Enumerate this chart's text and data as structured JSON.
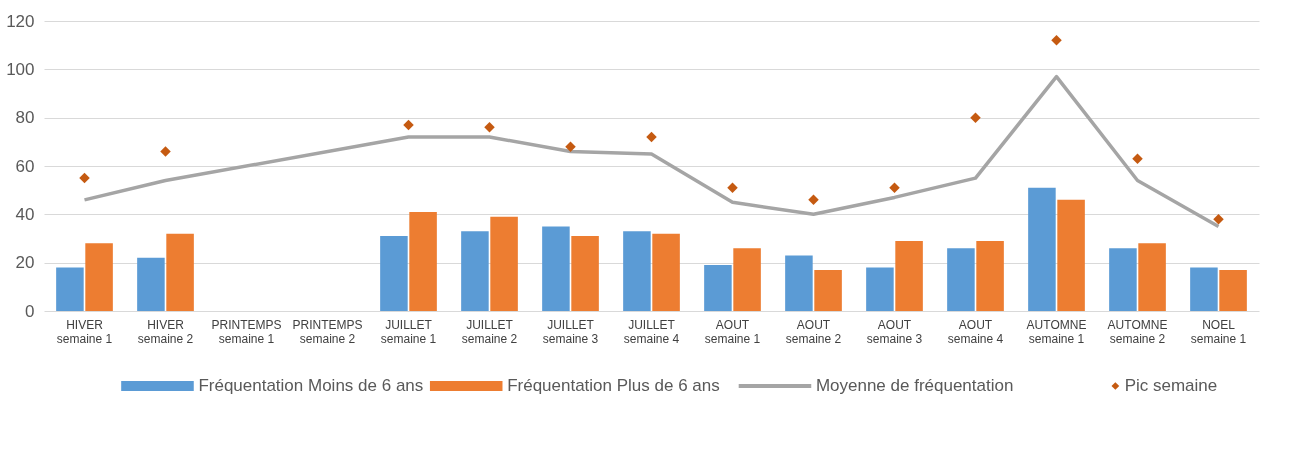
{
  "chart_data": {
    "type": "bar",
    "categories": [
      "HIVER semaine 1",
      "HIVER semaine 2",
      "PRINTEMPS semaine 1",
      "PRINTEMPS semaine 2",
      "JUILLET semaine 1",
      "JUILLET semaine 2",
      "JUILLET semaine 3",
      "JUILLET semaine 4",
      "AOUT semaine 1",
      "AOUT semaine 2",
      "AOUT semaine 3",
      "AOUT semaine 4",
      "AUTOMNE semaine 1",
      "AUTOMNE semaine 2",
      "NOEL semaine 1"
    ],
    "series": [
      {
        "name": "Fréquentation Moins de 6 ans",
        "color": "#5b9bd5",
        "values": [
          18,
          22,
          null,
          null,
          31,
          33,
          35,
          33,
          19,
          23,
          18,
          26,
          51,
          26,
          18
        ]
      },
      {
        "name": "Fréquentation Plus de 6 ans",
        "color": "#ed7d31",
        "values": [
          28,
          32,
          null,
          null,
          41,
          39,
          31,
          32,
          26,
          17,
          29,
          29,
          46,
          28,
          17
        ]
      },
      {
        "name": "Moyenne de fréquentation",
        "color": "#a5a5a5",
        "type": "line",
        "values": [
          46,
          54,
          null,
          null,
          72,
          72,
          66,
          65,
          45,
          40,
          47,
          55,
          97,
          54,
          35
        ]
      },
      {
        "name": "Pic semaine",
        "color": "#c55a11",
        "type": "scatter",
        "marker": "diamond",
        "values": [
          55,
          66,
          null,
          null,
          77,
          76,
          68,
          72,
          51,
          46,
          51,
          80,
          112,
          63,
          38
        ]
      }
    ],
    "ylim": [
      0,
      120
    ],
    "yticks": [
      0,
      20,
      40,
      60,
      80,
      100,
      120
    ],
    "grid": "y",
    "legend": "bottom"
  }
}
